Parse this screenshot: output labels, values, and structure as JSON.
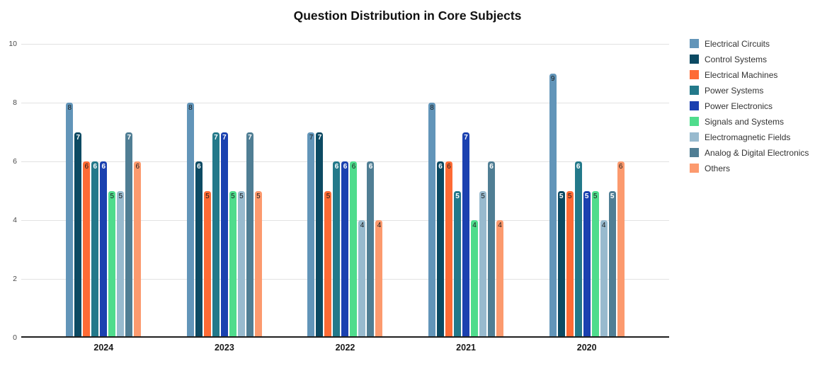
{
  "page": {
    "background": "#ffffff"
  },
  "chart_data": {
    "type": "bar",
    "title": "Question Distribution in Core Subjects",
    "categories": [
      "2024",
      "2023",
      "2022",
      "2021",
      "2020"
    ],
    "series": [
      {
        "name": "Electrical Circuits",
        "color": "#6295b9",
        "label_color": "#1a1a1a",
        "values": [
          8,
          8,
          7,
          8,
          9
        ]
      },
      {
        "name": "Control Systems",
        "color": "#0c4a63",
        "label_color": "#ffffff",
        "values": [
          7,
          6,
          7,
          6,
          5
        ]
      },
      {
        "name": "Electrical Machines",
        "color": "#fe6b35",
        "label_color": "#1a1a1a",
        "values": [
          6,
          5,
          5,
          6,
          5
        ]
      },
      {
        "name": "Power Systems",
        "color": "#23798a",
        "label_color": "#ffffff",
        "values": [
          6,
          7,
          6,
          5,
          6
        ]
      },
      {
        "name": "Power Electronics",
        "color": "#1b41b0",
        "label_color": "#ffffff",
        "values": [
          6,
          7,
          6,
          7,
          5
        ]
      },
      {
        "name": "Signals and Systems",
        "color": "#4fdc8c",
        "label_color": "#1a1a1a",
        "values": [
          5,
          5,
          6,
          4,
          5
        ]
      },
      {
        "name": "Electromagnetic Fields",
        "color": "#98bace",
        "label_color": "#1a1a1a",
        "values": [
          5,
          5,
          4,
          5,
          4
        ]
      },
      {
        "name": "Analog & Digital Electronics",
        "color": "#507e94",
        "label_color": "#ffffff",
        "values": [
          7,
          7,
          6,
          6,
          5
        ]
      },
      {
        "name": "Others",
        "color": "#fc9a6e",
        "label_color": "#1a1a1a",
        "values": [
          6,
          5,
          4,
          4,
          6
        ]
      }
    ],
    "ylim": [
      0,
      10
    ],
    "yticks": [
      0,
      2,
      4,
      6,
      8,
      10
    ],
    "grid": true,
    "legend_position": "right",
    "value_labels": "inside-top"
  },
  "colors": {
    "gridline": "#e2e2e2",
    "axis_line": "#1f1f1f",
    "tick_label": "#4a4a4a",
    "category_label": "#1a1a1a",
    "legend_label": "#333333",
    "title": "#111111"
  }
}
